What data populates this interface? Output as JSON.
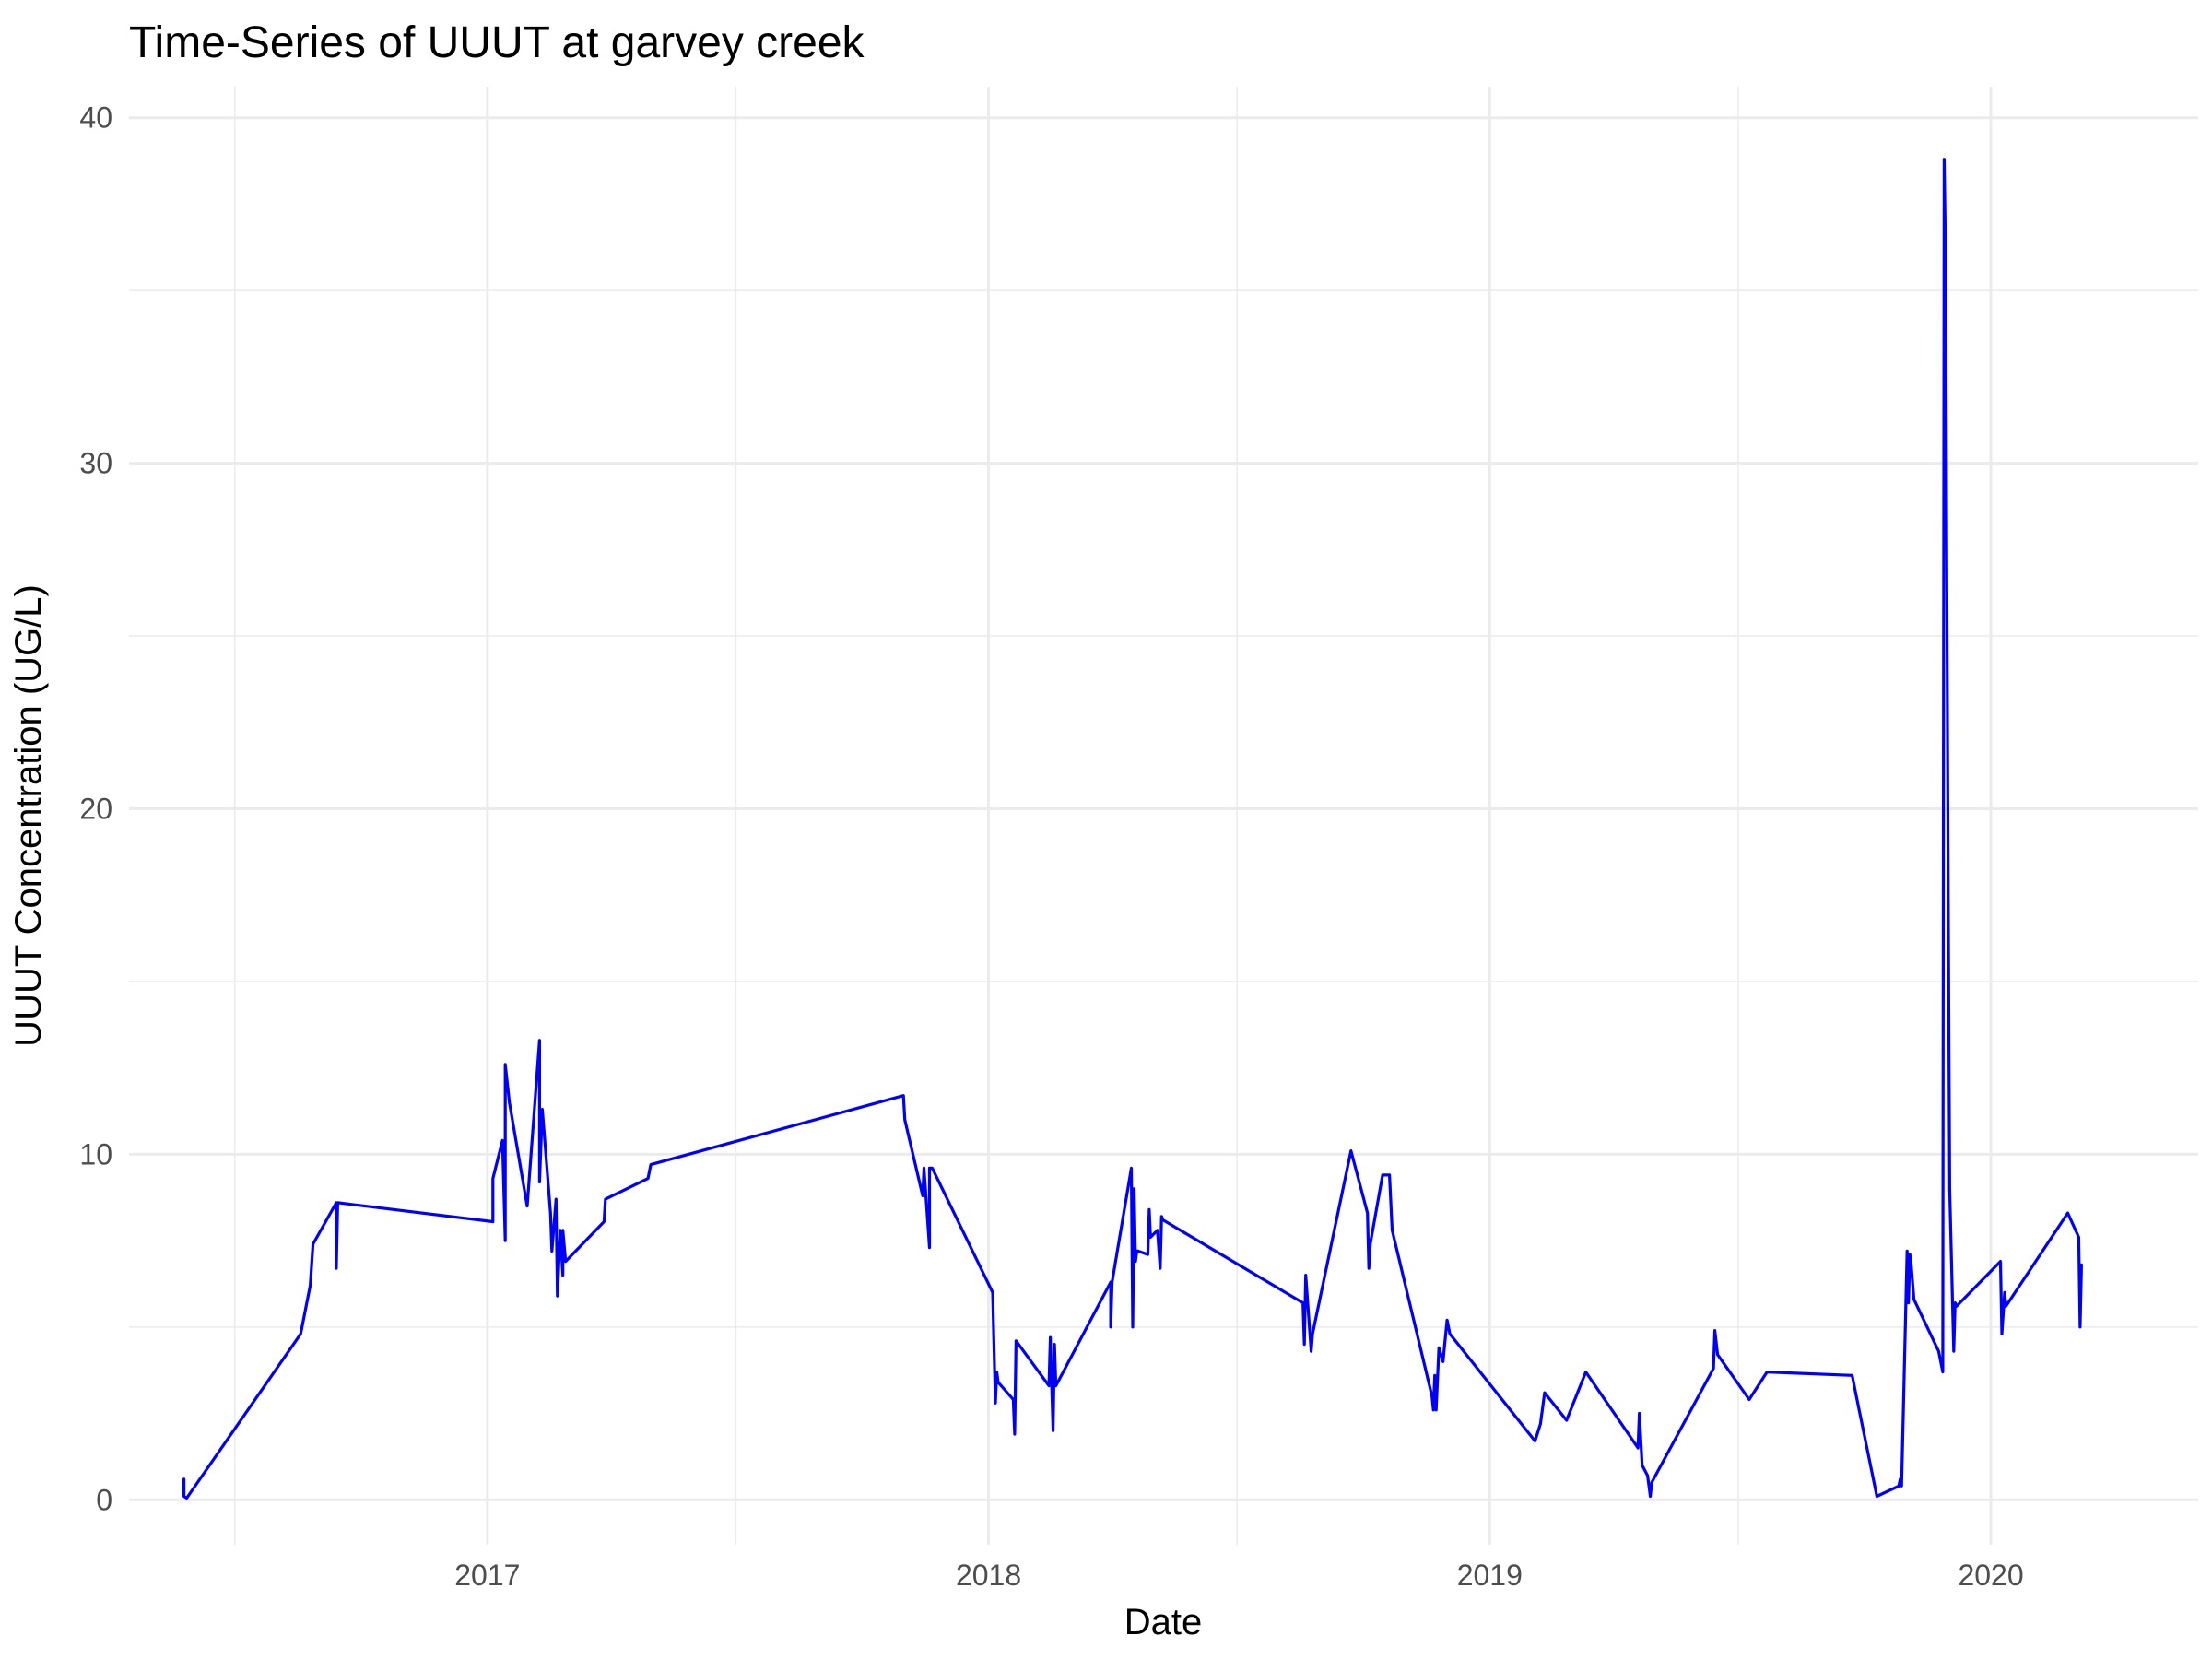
{
  "chart_data": {
    "type": "line",
    "title": "Time-Series of UUUT at garvey creek",
    "xlabel": "Date",
    "ylabel": "UUUT Concentration (UG/L)",
    "x_ticks": [
      "2017",
      "2018",
      "2019",
      "2020"
    ],
    "y_ticks": [
      "0",
      "10",
      "20",
      "30",
      "40"
    ],
    "xlim": [
      "2016-04-15",
      "2020-05-31"
    ],
    "ylim": [
      -1.3,
      40.9
    ],
    "grid": true,
    "line_color": "#0000ff",
    "series": [
      {
        "x": [
          "2016-05-25",
          "2016-05-25",
          "2016-05-27",
          "2016-08-18",
          "2016-08-25",
          "2016-08-27",
          "2016-09-13",
          "2016-09-13",
          "2016-09-14",
          "2017-01-05",
          "2017-01-05",
          "2017-01-12",
          "2017-01-14",
          "2017-01-14",
          "2017-01-17",
          "2017-01-30",
          "2017-02-08",
          "2017-02-08",
          "2017-02-10",
          "2017-02-16",
          "2017-02-17",
          "2017-02-20",
          "2017-02-21",
          "2017-02-23",
          "2017-02-25",
          "2017-02-25",
          "2017-02-27",
          "2017-03-27",
          "2017-03-28",
          "2017-04-28",
          "2017-04-30",
          "2017-10-31",
          "2017-11-01",
          "2017-11-14",
          "2017-11-15",
          "2017-11-19",
          "2017-11-19",
          "2017-11-21",
          "2018-01-04",
          "2018-01-06",
          "2018-01-07",
          "2018-01-08",
          "2018-01-19",
          "2018-01-20",
          "2018-01-21",
          "2018-02-14",
          "2018-02-15",
          "2018-02-16",
          "2018-02-17",
          "2018-02-18",
          "2018-02-19",
          "2018-03-31",
          "2018-03-31",
          "2018-04-01",
          "2018-04-15",
          "2018-04-16",
          "2018-04-17",
          "2018-04-18",
          "2018-04-19",
          "2018-04-20",
          "2018-04-27",
          "2018-04-28",
          "2018-04-29",
          "2018-05-04",
          "2018-05-06",
          "2018-05-07",
          "2018-05-08",
          "2018-08-18",
          "2018-08-19",
          "2018-08-20",
          "2018-08-24",
          "2018-08-25",
          "2018-09-22",
          "2018-10-04",
          "2018-10-05",
          "2018-10-06",
          "2018-10-15",
          "2018-10-20",
          "2018-10-22",
          "2018-11-20",
          "2018-11-21",
          "2018-11-22",
          "2018-11-23",
          "2018-11-25",
          "2018-11-28",
          "2018-11-29",
          "2018-12-01",
          "2018-12-03",
          "2019-02-03",
          "2019-02-07",
          "2019-02-10",
          "2019-02-26",
          "2019-03-12",
          "2019-04-19",
          "2019-04-20",
          "2019-04-22",
          "2019-04-26",
          "2019-04-28",
          "2019-04-29",
          "2019-06-13",
          "2019-06-14",
          "2019-06-16",
          "2019-07-09",
          "2019-07-22",
          "2019-09-22",
          "2019-09-25",
          "2019-10-10",
          "2019-10-26",
          "2019-10-27",
          "2019-10-28",
          "2019-11-01",
          "2019-11-02",
          "2019-11-03",
          "2019-11-04",
          "2019-11-06",
          "2019-11-24",
          "2019-11-27",
          "2019-11-28",
          "2019-11-29",
          "2019-11-30",
          "2019-12-01",
          "2019-12-02",
          "2019-12-05",
          "2019-12-06",
          "2019-12-07",
          "2020-01-08",
          "2020-01-09",
          "2020-01-11",
          "2020-01-12",
          "2020-02-26",
          "2020-03-05",
          "2020-03-06",
          "2020-03-07"
        ],
        "y": [
          0.6,
          0.1,
          0.05,
          4.8,
          6.2,
          7.4,
          8.6,
          6.7,
          8.6,
          8.05,
          9.3,
          10.4,
          7.5,
          12.6,
          11.5,
          8.5,
          13.3,
          9.2,
          11.3,
          8.3,
          7.2,
          8.7,
          5.9,
          7.8,
          6.5,
          7.8,
          6.9,
          8.05,
          8.7,
          9.3,
          9.7,
          11.7,
          11.0,
          8.8,
          9.6,
          7.3,
          9.6,
          9.6,
          6.0,
          2.8,
          3.7,
          3.4,
          2.9,
          1.9,
          4.6,
          3.3,
          4.7,
          3.3,
          2.0,
          4.5,
          3.3,
          6.3,
          5.0,
          6.3,
          9.6,
          5.0,
          9.0,
          6.9,
          7.2,
          7.2,
          7.1,
          8.4,
          7.6,
          7.8,
          6.7,
          8.2,
          8.1,
          5.7,
          4.5,
          6.5,
          4.3,
          4.8,
          10.1,
          8.3,
          6.7,
          7.4,
          9.4,
          9.4,
          7.8,
          3.0,
          2.6,
          3.6,
          2.6,
          4.4,
          4.0,
          4.4,
          5.2,
          4.8,
          1.7,
          2.2,
          3.1,
          2.3,
          3.7,
          1.5,
          2.5,
          1.0,
          0.7,
          0.1,
          0.5,
          3.8,
          4.9,
          4.2,
          2.9,
          3.7,
          3.6,
          3.0,
          0.1,
          0.4,
          0.6,
          0.4,
          7.2,
          5.7,
          7.1,
          6.8,
          5.8,
          4.3,
          3.7,
          38.8,
          36.0,
          26.0,
          17.0,
          9.0,
          4.3,
          5.7,
          5.6,
          6.9,
          4.8,
          6.0,
          5.6,
          8.3,
          7.6,
          5.0,
          6.8
        ]
      }
    ]
  }
}
